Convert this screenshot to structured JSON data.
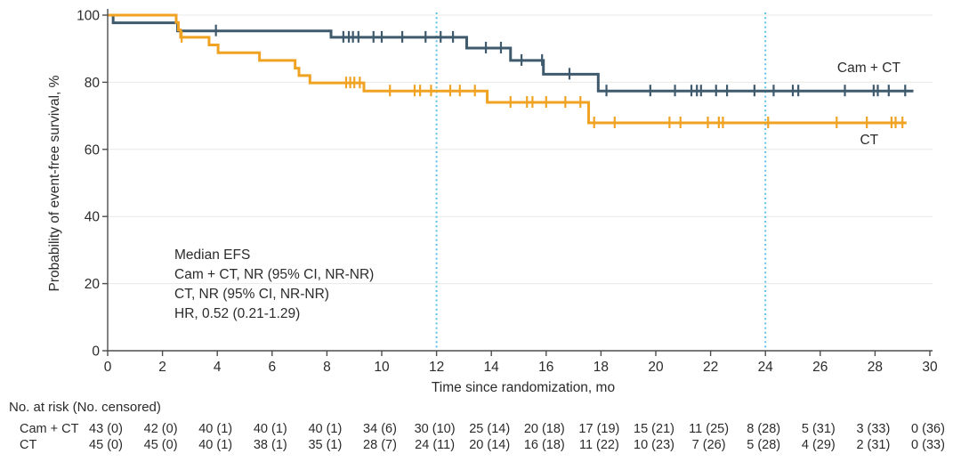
{
  "colors": {
    "camct": "#3E5A6C",
    "ct": "#F0A222",
    "reference": "#5BC2E7",
    "grid": "#E8E8E6",
    "axis": "#4D4D4D",
    "text": "#2B2B2B"
  },
  "chart_data": {
    "type": "line",
    "subtype": "kaplan-meier-step",
    "title": "",
    "xlabel": "Time since randomization, mo",
    "ylabel": "Probability of event-free survival, %",
    "xlim": [
      0,
      30
    ],
    "ylim": [
      0,
      100
    ],
    "xticks": [
      0,
      2,
      4,
      6,
      8,
      10,
      12,
      14,
      16,
      18,
      20,
      22,
      24,
      26,
      28,
      30
    ],
    "yticks": [
      0,
      20,
      40,
      60,
      80,
      100
    ],
    "grid": "horizontal gridlines at each y tick",
    "legend_position": "curve-end labels",
    "reference_lines_x": [
      12,
      24
    ],
    "annotation": {
      "lines": [
        "Median EFS",
        "Cam + CT, NR (95% CI, NR-NR)",
        "CT, NR (95% CI, NR-NR)",
        "HR, 0.52 (0.21-1.29)"
      ]
    },
    "series": [
      {
        "id": "camct",
        "name": "Cam + CT",
        "color": "#3E5A6C",
        "end_time": 29.4,
        "steps": [
          [
            0,
            100
          ],
          [
            0.2,
            97.7
          ],
          [
            2.55,
            95.3
          ],
          [
            8.15,
            93.4
          ],
          [
            13.1,
            90.2
          ],
          [
            14.7,
            86.5
          ],
          [
            15.9,
            82.4
          ],
          [
            17.9,
            77.4
          ]
        ],
        "censor_times": [
          3.95,
          8.6,
          8.8,
          8.95,
          9.15,
          9.7,
          10.0,
          10.75,
          11.6,
          12.15,
          12.6,
          13.8,
          14.35,
          15.1,
          15.85,
          16.85,
          18.2,
          19.8,
          20.7,
          21.3,
          21.5,
          21.65,
          22.2,
          22.6,
          23.6,
          24.3,
          25.0,
          25.2,
          26.9,
          27.95,
          28.1,
          28.5,
          29.1
        ],
        "label_pos": {
          "t": 26.62,
          "p": 83.0
        }
      },
      {
        "id": "ct",
        "name": "CT",
        "color": "#F0A222",
        "end_time": 29.15,
        "steps": [
          [
            0,
            100
          ],
          [
            2.5,
            97.8
          ],
          [
            2.58,
            95.6
          ],
          [
            2.66,
            93.4
          ],
          [
            3.7,
            91.1
          ],
          [
            4.03,
            88.8
          ],
          [
            5.54,
            86.5
          ],
          [
            6.84,
            84.2
          ],
          [
            6.98,
            82.0
          ],
          [
            7.38,
            79.8
          ],
          [
            9.35,
            77.4
          ],
          [
            13.85,
            74.0
          ],
          [
            17.55,
            67.9
          ]
        ],
        "censor_times": [
          2.7,
          8.7,
          8.85,
          9.0,
          9.2,
          10.3,
          11.2,
          11.4,
          11.8,
          12.5,
          12.85,
          13.4,
          14.7,
          15.3,
          15.5,
          16.0,
          16.7,
          17.25,
          17.75,
          18.5,
          20.5,
          20.9,
          21.9,
          22.3,
          22.45,
          24.1,
          26.6,
          27.7,
          28.6,
          28.75,
          29.0
        ],
        "label_pos": {
          "t": 27.45,
          "p": 61.5
        }
      }
    ]
  },
  "risk_table": {
    "title": "No. at risk (No. censored)",
    "times": [
      0,
      2,
      4,
      6,
      8,
      10,
      12,
      14,
      16,
      18,
      20,
      22,
      24,
      26,
      28,
      30
    ],
    "rows": [
      {
        "label": "Cam + CT",
        "values": [
          "43 (0)",
          "42 (0)",
          "40 (1)",
          "40 (1)",
          "40 (1)",
          "34 (6)",
          "30 (10)",
          "25 (14)",
          "20 (18)",
          "17 (19)",
          "15 (21)",
          "11 (25)",
          "8 (28)",
          "5 (31)",
          "3 (33)",
          "0 (36)"
        ]
      },
      {
        "label": "CT",
        "values": [
          "45 (0)",
          "45 (0)",
          "40 (1)",
          "38 (1)",
          "35 (1)",
          "28 (7)",
          "24 (11)",
          "20 (14)",
          "16 (18)",
          "11 (22)",
          "10 (23)",
          "7 (26)",
          "5 (28)",
          "4 (29)",
          "2 (31)",
          "0 (33)"
        ]
      }
    ]
  }
}
